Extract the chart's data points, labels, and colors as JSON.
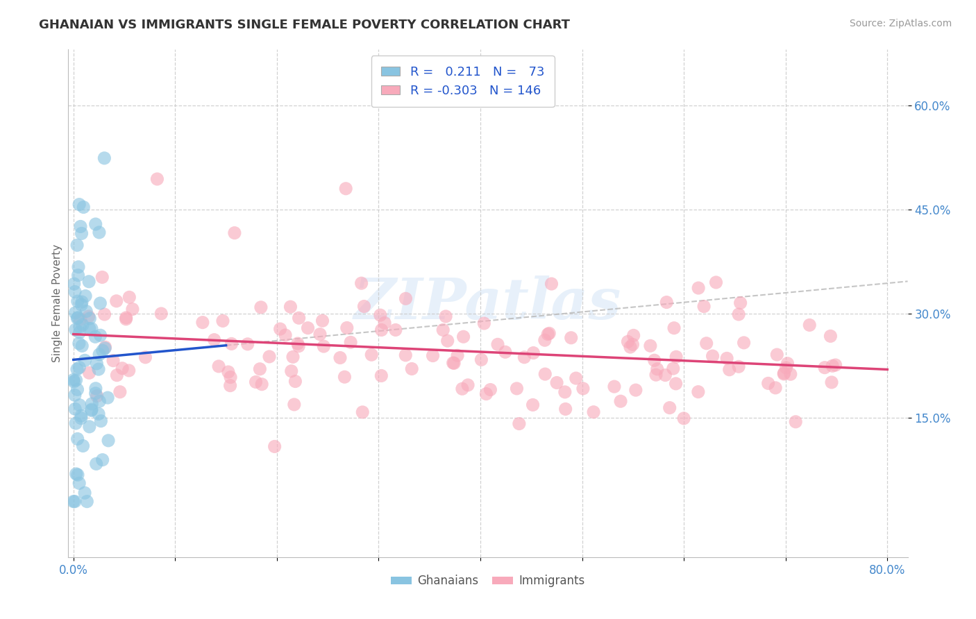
{
  "title": "GHANAIAN VS IMMIGRANTS SINGLE FEMALE POVERTY CORRELATION CHART",
  "source_text": "Source: ZipAtlas.com",
  "ylabel": "Single Female Poverty",
  "xlim": [
    -0.005,
    0.82
  ],
  "ylim": [
    -0.05,
    0.68
  ],
  "xtick_positions": [
    0.0,
    0.1,
    0.2,
    0.3,
    0.4,
    0.5,
    0.6,
    0.7,
    0.8
  ],
  "xticklabels_shown": {
    "0": "0.0%",
    "8": "80.0%"
  },
  "ytick_positions": [
    0.15,
    0.3,
    0.45,
    0.6
  ],
  "ytick_labels": [
    "15.0%",
    "30.0%",
    "45.0%",
    "60.0%"
  ],
  "ghanaian_color": "#89C4E1",
  "immigrant_color": "#F8AABB",
  "ghanaian_R": 0.211,
  "ghanaian_N": 73,
  "immigrant_R": -0.303,
  "immigrant_N": 146,
  "trend_blue": "#2255CC",
  "trend_pink": "#DD4477",
  "trend_gray": "#BBBBBB",
  "watermark": "ZIPatlas",
  "background_color": "#FFFFFF",
  "grid_color": "#CCCCCC",
  "title_color": "#333333",
  "axis_label_color": "#666666",
  "tick_label_color": "#4488CC",
  "legend_text_color": "#2255CC",
  "legend_patch_blue": "#89C4E1",
  "legend_patch_pink": "#F8AABB"
}
